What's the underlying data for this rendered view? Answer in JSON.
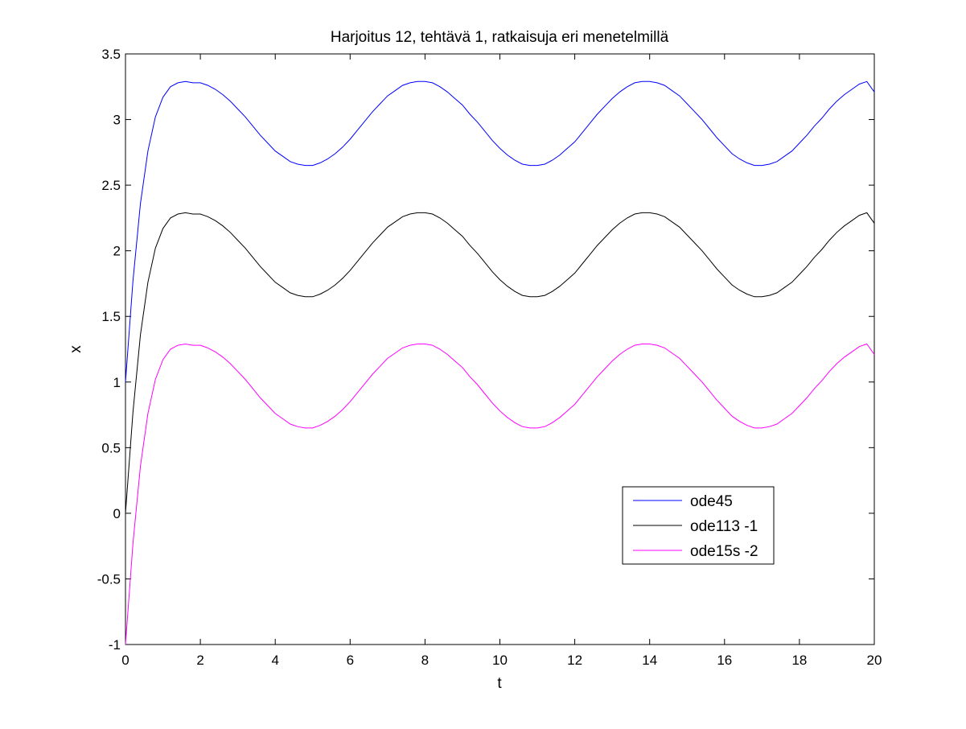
{
  "chart_data": {
    "type": "line",
    "title": "Harjoitus 12, tehtävä 1, ratkaisuja eri menetelmillä",
    "xlabel": "t",
    "ylabel": "x",
    "xlim": [
      0,
      20
    ],
    "ylim": [
      -1,
      3.5
    ],
    "grid": false,
    "legend_placement": "lower-right",
    "x_ticks": [
      "0",
      "2",
      "4",
      "6",
      "8",
      "10",
      "12",
      "14",
      "16",
      "18",
      "20"
    ],
    "y_ticks": [
      "-1",
      "-0.5",
      "0",
      "0.5",
      "1",
      "1.5",
      "2",
      "2.5",
      "3",
      "3.5"
    ],
    "x": [
      0,
      0.2,
      0.4,
      0.6,
      0.8,
      1.0,
      1.2,
      1.4,
      1.6,
      1.8,
      2.0,
      2.2,
      2.4,
      2.6,
      2.8,
      3.0,
      3.2,
      3.4,
      3.6,
      3.8,
      4.0,
      4.2,
      4.4,
      4.6,
      4.8,
      5.0,
      5.2,
      5.4,
      5.6,
      5.8,
      6.0,
      6.2,
      6.4,
      6.6,
      6.8,
      7.0,
      7.2,
      7.4,
      7.6,
      7.8,
      8.0,
      8.2,
      8.4,
      8.6,
      8.8,
      9.0,
      9.2,
      9.4,
      9.6,
      9.8,
      10.0,
      10.2,
      10.4,
      10.6,
      10.8,
      11.0,
      11.2,
      11.4,
      11.6,
      11.8,
      12.0,
      12.2,
      12.4,
      12.6,
      12.8,
      13.0,
      13.2,
      13.4,
      13.6,
      13.8,
      14.0,
      14.2,
      14.4,
      14.6,
      14.8,
      15.0,
      15.2,
      15.4,
      15.6,
      15.8,
      16.0,
      16.2,
      16.4,
      16.6,
      16.8,
      17.0,
      17.2,
      17.4,
      17.6,
      17.8,
      18.0,
      18.2,
      18.4,
      18.6,
      18.8,
      19.0,
      19.2,
      19.4,
      19.6,
      19.8,
      20.0
    ],
    "series": [
      {
        "name": "ode45",
        "color": "#0000ff",
        "values": [
          1.0,
          1.77,
          2.36,
          2.76,
          3.02,
          3.17,
          3.25,
          3.28,
          3.29,
          3.28,
          3.28,
          3.26,
          3.23,
          3.19,
          3.14,
          3.08,
          3.02,
          2.95,
          2.88,
          2.82,
          2.76,
          2.72,
          2.68,
          2.66,
          2.65,
          2.65,
          2.67,
          2.7,
          2.74,
          2.79,
          2.85,
          2.92,
          2.99,
          3.06,
          3.12,
          3.18,
          3.22,
          3.26,
          3.28,
          3.29,
          3.29,
          3.28,
          3.25,
          3.21,
          3.16,
          3.11,
          3.04,
          2.98,
          2.91,
          2.84,
          2.78,
          2.73,
          2.69,
          2.66,
          2.65,
          2.65,
          2.66,
          2.69,
          2.73,
          2.78,
          2.83,
          2.9,
          2.97,
          3.04,
          3.1,
          3.16,
          3.21,
          3.25,
          3.28,
          3.29,
          3.29,
          3.28,
          3.26,
          3.22,
          3.18,
          3.12,
          3.06,
          3.0,
          2.93,
          2.86,
          2.8,
          2.74,
          2.7,
          2.67,
          2.65,
          2.65,
          2.66,
          2.68,
          2.72,
          2.76,
          2.82,
          2.88,
          2.95,
          3.01,
          3.08,
          3.14,
          3.19,
          3.23,
          3.27,
          3.29,
          3.21
        ]
      },
      {
        "name": "ode113 -1",
        "color": "#000000",
        "values": [
          0.0,
          0.77,
          1.36,
          1.76,
          2.02,
          2.17,
          2.25,
          2.28,
          2.29,
          2.28,
          2.28,
          2.26,
          2.23,
          2.19,
          2.14,
          2.08,
          2.02,
          1.95,
          1.88,
          1.82,
          1.76,
          1.72,
          1.68,
          1.66,
          1.65,
          1.65,
          1.67,
          1.7,
          1.74,
          1.79,
          1.85,
          1.92,
          1.99,
          2.06,
          2.12,
          2.18,
          2.22,
          2.26,
          2.28,
          2.29,
          2.29,
          2.28,
          2.25,
          2.21,
          2.16,
          2.11,
          2.04,
          1.98,
          1.91,
          1.84,
          1.78,
          1.73,
          1.69,
          1.66,
          1.65,
          1.65,
          1.66,
          1.69,
          1.73,
          1.78,
          1.83,
          1.9,
          1.97,
          2.04,
          2.1,
          2.16,
          2.21,
          2.25,
          2.28,
          2.29,
          2.29,
          2.28,
          2.26,
          2.22,
          2.18,
          2.12,
          2.06,
          2.0,
          1.93,
          1.86,
          1.8,
          1.74,
          1.7,
          1.67,
          1.65,
          1.65,
          1.66,
          1.68,
          1.72,
          1.76,
          1.82,
          1.88,
          1.95,
          2.01,
          2.08,
          2.14,
          2.19,
          2.23,
          2.27,
          2.29,
          2.21
        ]
      },
      {
        "name": "ode15s -2",
        "color": "#ff00ff",
        "values": [
          -1.0,
          -0.23,
          0.36,
          0.76,
          1.02,
          1.17,
          1.25,
          1.28,
          1.29,
          1.28,
          1.28,
          1.26,
          1.23,
          1.19,
          1.14,
          1.08,
          1.02,
          0.95,
          0.88,
          0.82,
          0.76,
          0.72,
          0.68,
          0.66,
          0.65,
          0.65,
          0.67,
          0.7,
          0.74,
          0.79,
          0.85,
          0.92,
          0.99,
          1.06,
          1.12,
          1.18,
          1.22,
          1.26,
          1.28,
          1.29,
          1.29,
          1.28,
          1.25,
          1.21,
          1.16,
          1.11,
          1.04,
          0.98,
          0.91,
          0.84,
          0.78,
          0.73,
          0.69,
          0.66,
          0.65,
          0.65,
          0.66,
          0.69,
          0.73,
          0.78,
          0.83,
          0.9,
          0.97,
          1.04,
          1.1,
          1.16,
          1.21,
          1.25,
          1.28,
          1.29,
          1.29,
          1.28,
          1.26,
          1.22,
          1.18,
          1.12,
          1.06,
          1.0,
          0.93,
          0.86,
          0.8,
          0.74,
          0.7,
          0.67,
          0.65,
          0.65,
          0.66,
          0.68,
          0.72,
          0.76,
          0.82,
          0.88,
          0.95,
          1.01,
          1.08,
          1.14,
          1.19,
          1.23,
          1.27,
          1.29,
          1.21
        ]
      }
    ]
  }
}
